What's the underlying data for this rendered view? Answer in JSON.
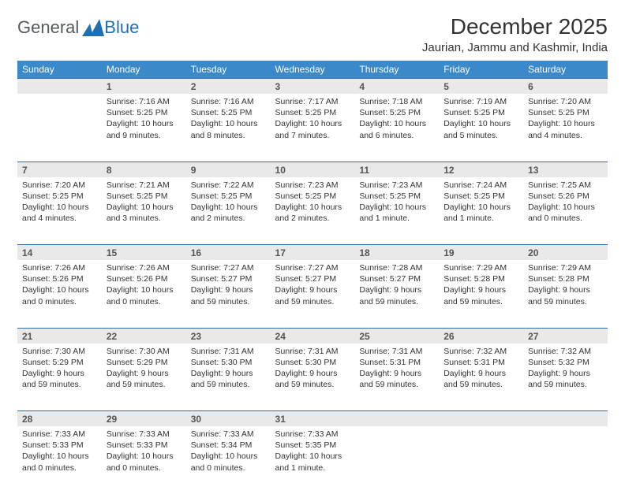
{
  "brand": {
    "word1": "General",
    "word2": "Blue",
    "color1": "#5a5f63",
    "color2": "#1e6fb3",
    "mark_color": "#1e6fb3"
  },
  "title": "December 2025",
  "location": "Jaurian, Jammu and Kashmir, India",
  "header_bg": "#3b89c9",
  "row_divider": "#2f6fa8",
  "daynum_bg": "#e9e9e9",
  "day_names": [
    "Sunday",
    "Monday",
    "Tuesday",
    "Wednesday",
    "Thursday",
    "Friday",
    "Saturday"
  ],
  "weeks": [
    [
      null,
      {
        "n": "1",
        "sr": "Sunrise: 7:16 AM",
        "ss": "Sunset: 5:25 PM",
        "d1": "Daylight: 10 hours",
        "d2": "and 9 minutes."
      },
      {
        "n": "2",
        "sr": "Sunrise: 7:16 AM",
        "ss": "Sunset: 5:25 PM",
        "d1": "Daylight: 10 hours",
        "d2": "and 8 minutes."
      },
      {
        "n": "3",
        "sr": "Sunrise: 7:17 AM",
        "ss": "Sunset: 5:25 PM",
        "d1": "Daylight: 10 hours",
        "d2": "and 7 minutes."
      },
      {
        "n": "4",
        "sr": "Sunrise: 7:18 AM",
        "ss": "Sunset: 5:25 PM",
        "d1": "Daylight: 10 hours",
        "d2": "and 6 minutes."
      },
      {
        "n": "5",
        "sr": "Sunrise: 7:19 AM",
        "ss": "Sunset: 5:25 PM",
        "d1": "Daylight: 10 hours",
        "d2": "and 5 minutes."
      },
      {
        "n": "6",
        "sr": "Sunrise: 7:20 AM",
        "ss": "Sunset: 5:25 PM",
        "d1": "Daylight: 10 hours",
        "d2": "and 4 minutes."
      }
    ],
    [
      {
        "n": "7",
        "sr": "Sunrise: 7:20 AM",
        "ss": "Sunset: 5:25 PM",
        "d1": "Daylight: 10 hours",
        "d2": "and 4 minutes."
      },
      {
        "n": "8",
        "sr": "Sunrise: 7:21 AM",
        "ss": "Sunset: 5:25 PM",
        "d1": "Daylight: 10 hours",
        "d2": "and 3 minutes."
      },
      {
        "n": "9",
        "sr": "Sunrise: 7:22 AM",
        "ss": "Sunset: 5:25 PM",
        "d1": "Daylight: 10 hours",
        "d2": "and 2 minutes."
      },
      {
        "n": "10",
        "sr": "Sunrise: 7:23 AM",
        "ss": "Sunset: 5:25 PM",
        "d1": "Daylight: 10 hours",
        "d2": "and 2 minutes."
      },
      {
        "n": "11",
        "sr": "Sunrise: 7:23 AM",
        "ss": "Sunset: 5:25 PM",
        "d1": "Daylight: 10 hours",
        "d2": "and 1 minute."
      },
      {
        "n": "12",
        "sr": "Sunrise: 7:24 AM",
        "ss": "Sunset: 5:25 PM",
        "d1": "Daylight: 10 hours",
        "d2": "and 1 minute."
      },
      {
        "n": "13",
        "sr": "Sunrise: 7:25 AM",
        "ss": "Sunset: 5:26 PM",
        "d1": "Daylight: 10 hours",
        "d2": "and 0 minutes."
      }
    ],
    [
      {
        "n": "14",
        "sr": "Sunrise: 7:26 AM",
        "ss": "Sunset: 5:26 PM",
        "d1": "Daylight: 10 hours",
        "d2": "and 0 minutes."
      },
      {
        "n": "15",
        "sr": "Sunrise: 7:26 AM",
        "ss": "Sunset: 5:26 PM",
        "d1": "Daylight: 10 hours",
        "d2": "and 0 minutes."
      },
      {
        "n": "16",
        "sr": "Sunrise: 7:27 AM",
        "ss": "Sunset: 5:27 PM",
        "d1": "Daylight: 9 hours",
        "d2": "and 59 minutes."
      },
      {
        "n": "17",
        "sr": "Sunrise: 7:27 AM",
        "ss": "Sunset: 5:27 PM",
        "d1": "Daylight: 9 hours",
        "d2": "and 59 minutes."
      },
      {
        "n": "18",
        "sr": "Sunrise: 7:28 AM",
        "ss": "Sunset: 5:27 PM",
        "d1": "Daylight: 9 hours",
        "d2": "and 59 minutes."
      },
      {
        "n": "19",
        "sr": "Sunrise: 7:29 AM",
        "ss": "Sunset: 5:28 PM",
        "d1": "Daylight: 9 hours",
        "d2": "and 59 minutes."
      },
      {
        "n": "20",
        "sr": "Sunrise: 7:29 AM",
        "ss": "Sunset: 5:28 PM",
        "d1": "Daylight: 9 hours",
        "d2": "and 59 minutes."
      }
    ],
    [
      {
        "n": "21",
        "sr": "Sunrise: 7:30 AM",
        "ss": "Sunset: 5:29 PM",
        "d1": "Daylight: 9 hours",
        "d2": "and 59 minutes."
      },
      {
        "n": "22",
        "sr": "Sunrise: 7:30 AM",
        "ss": "Sunset: 5:29 PM",
        "d1": "Daylight: 9 hours",
        "d2": "and 59 minutes."
      },
      {
        "n": "23",
        "sr": "Sunrise: 7:31 AM",
        "ss": "Sunset: 5:30 PM",
        "d1": "Daylight: 9 hours",
        "d2": "and 59 minutes."
      },
      {
        "n": "24",
        "sr": "Sunrise: 7:31 AM",
        "ss": "Sunset: 5:30 PM",
        "d1": "Daylight: 9 hours",
        "d2": "and 59 minutes."
      },
      {
        "n": "25",
        "sr": "Sunrise: 7:31 AM",
        "ss": "Sunset: 5:31 PM",
        "d1": "Daylight: 9 hours",
        "d2": "and 59 minutes."
      },
      {
        "n": "26",
        "sr": "Sunrise: 7:32 AM",
        "ss": "Sunset: 5:31 PM",
        "d1": "Daylight: 9 hours",
        "d2": "and 59 minutes."
      },
      {
        "n": "27",
        "sr": "Sunrise: 7:32 AM",
        "ss": "Sunset: 5:32 PM",
        "d1": "Daylight: 9 hours",
        "d2": "and 59 minutes."
      }
    ],
    [
      {
        "n": "28",
        "sr": "Sunrise: 7:33 AM",
        "ss": "Sunset: 5:33 PM",
        "d1": "Daylight: 10 hours",
        "d2": "and 0 minutes."
      },
      {
        "n": "29",
        "sr": "Sunrise: 7:33 AM",
        "ss": "Sunset: 5:33 PM",
        "d1": "Daylight: 10 hours",
        "d2": "and 0 minutes."
      },
      {
        "n": "30",
        "sr": "Sunrise: 7:33 AM",
        "ss": "Sunset: 5:34 PM",
        "d1": "Daylight: 10 hours",
        "d2": "and 0 minutes."
      },
      {
        "n": "31",
        "sr": "Sunrise: 7:33 AM",
        "ss": "Sunset: 5:35 PM",
        "d1": "Daylight: 10 hours",
        "d2": "and 1 minute."
      },
      null,
      null,
      null
    ]
  ]
}
